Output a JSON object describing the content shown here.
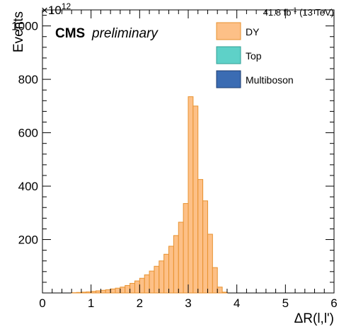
{
  "chart_data": {
    "type": "bar",
    "histogram": true,
    "xlabel": "ΔR(l,l')",
    "ylabel": "Events",
    "y_exponent_label": "×10",
    "y_exponent_power": "12",
    "lumi_label": "41.8 fb",
    "lumi_power": "-1",
    "lumi_energy": " (13 TeV)",
    "cms_label": "CMS",
    "cms_sublabel": "preliminary",
    "xlim": [
      0,
      6
    ],
    "ylim": [
      0,
      1060
    ],
    "x_ticks": [
      "0",
      "1",
      "2",
      "3",
      "4",
      "5",
      "6"
    ],
    "y_ticks": [
      "200",
      "400",
      "600",
      "800",
      "1000"
    ],
    "bin_edges_start": 0,
    "bin_width": 0.1,
    "legend": {
      "placement": "top-right"
    },
    "series": [
      {
        "name": "DY",
        "color": "#fdc087",
        "edge_color": "#e8922f",
        "values": [
          0,
          0,
          0,
          0,
          0,
          0,
          1,
          2,
          3,
          4,
          6,
          8,
          10,
          12,
          15,
          18,
          22,
          28,
          36,
          45,
          55,
          68,
          82,
          100,
          120,
          145,
          175,
          215,
          265,
          335,
          735,
          700,
          425,
          345,
          220,
          95,
          22,
          3,
          0,
          0,
          0,
          0,
          0,
          0,
          0,
          0,
          0,
          0,
          0,
          0,
          0,
          0,
          0,
          0,
          0,
          0,
          0,
          0,
          0,
          0
        ]
      },
      {
        "name": "Top",
        "color": "#5ed1c8",
        "edge_color": "#31a096",
        "values": []
      },
      {
        "name": "Multiboson",
        "color": "#3b6cb3",
        "edge_color": "#1f3e72",
        "values": []
      }
    ]
  }
}
